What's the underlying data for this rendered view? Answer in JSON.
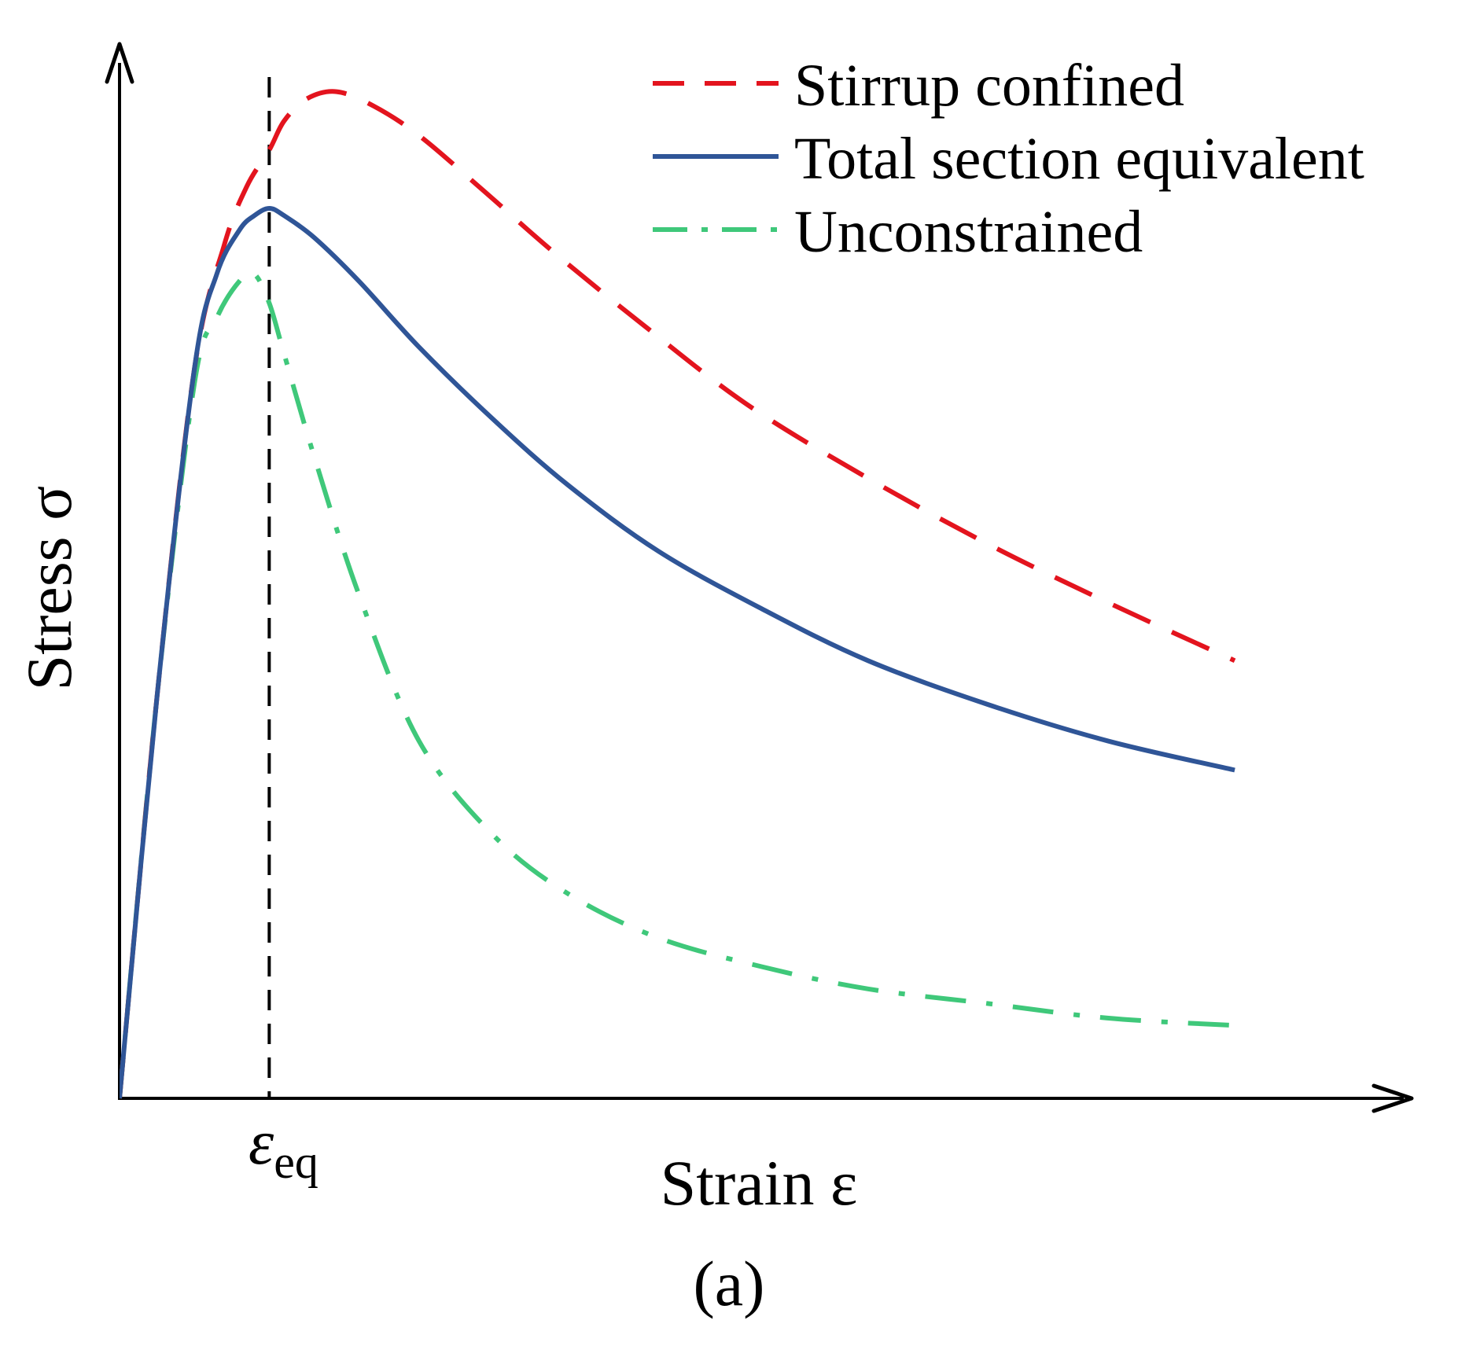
{
  "chart_data": {
    "type": "line",
    "title": "",
    "xlabel": "Strain ε",
    "ylabel": "Stress σ",
    "xlim": [
      0,
      8.5
    ],
    "ylim": [
      0,
      1.4
    ],
    "grid": false,
    "legend_position": "top-right",
    "caption": "(a)",
    "reference_line": {
      "x": 1.0,
      "label_symbol": "ε",
      "label_subscript": "eq",
      "style": "dashed",
      "color": "#000000"
    },
    "series": [
      {
        "name": "Stirrup confined",
        "style": "dashed",
        "color": "#e3141e",
        "x": [
          0,
          0.25,
          0.5,
          0.7,
          0.85,
          1.0,
          1.1,
          1.25,
          1.45,
          1.7,
          2.0,
          2.4,
          2.9,
          3.5,
          4.2,
          5.0,
          5.8,
          6.6,
          7.45
        ],
        "y": [
          0,
          0.55,
          1.0,
          1.17,
          1.25,
          1.3,
          1.34,
          1.37,
          1.38,
          1.36,
          1.32,
          1.25,
          1.16,
          1.06,
          0.95,
          0.85,
          0.76,
          0.68,
          0.6
        ]
      },
      {
        "name": "Total section equivalent",
        "style": "solid",
        "color": "#2f5597",
        "x": [
          0,
          0.25,
          0.5,
          0.65,
          0.8,
          0.9,
          1.0,
          1.1,
          1.3,
          1.6,
          2.0,
          2.5,
          3.0,
          3.6,
          4.3,
          5.0,
          5.8,
          6.6,
          7.45
        ],
        "y": [
          0,
          0.55,
          1.0,
          1.13,
          1.19,
          1.21,
          1.22,
          1.21,
          1.18,
          1.12,
          1.03,
          0.93,
          0.84,
          0.75,
          0.67,
          0.6,
          0.54,
          0.49,
          0.45
        ]
      },
      {
        "name": "Unconstrained",
        "style": "dash-dot",
        "color": "#3fc87a",
        "x": [
          0,
          0.25,
          0.5,
          0.65,
          0.8,
          0.9,
          1.0,
          1.1,
          1.3,
          1.6,
          2.0,
          2.5,
          3.0,
          3.6,
          4.3,
          5.0,
          5.8,
          6.6,
          7.45
        ],
        "y": [
          0,
          0.55,
          0.98,
          1.07,
          1.12,
          1.13,
          1.09,
          1.02,
          0.88,
          0.69,
          0.49,
          0.36,
          0.28,
          0.22,
          0.18,
          0.15,
          0.13,
          0.11,
          0.1
        ]
      }
    ]
  }
}
